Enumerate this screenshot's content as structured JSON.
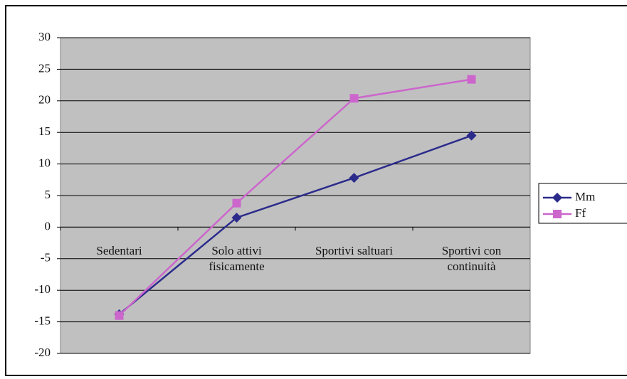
{
  "chart_data": {
    "type": "line",
    "categories": [
      "Sedentari",
      "Solo attivi fisicamente",
      "Sportivi saltuari",
      "Sportivi con continuità"
    ],
    "series": [
      {
        "name": "Mm",
        "color": "#2b2b8c",
        "marker": "diamond",
        "values": [
          -13.8,
          1.5,
          7.8,
          14.5
        ]
      },
      {
        "name": "Ff",
        "color": "#cc66cc",
        "marker": "square",
        "values": [
          -14,
          3.8,
          20.4,
          23.4
        ]
      }
    ],
    "ylim": [
      -20,
      30
    ],
    "yticks": [
      -20,
      -15,
      -10,
      -5,
      0,
      5,
      10,
      15,
      20,
      25,
      30
    ],
    "grid": true,
    "legend": "right"
  }
}
